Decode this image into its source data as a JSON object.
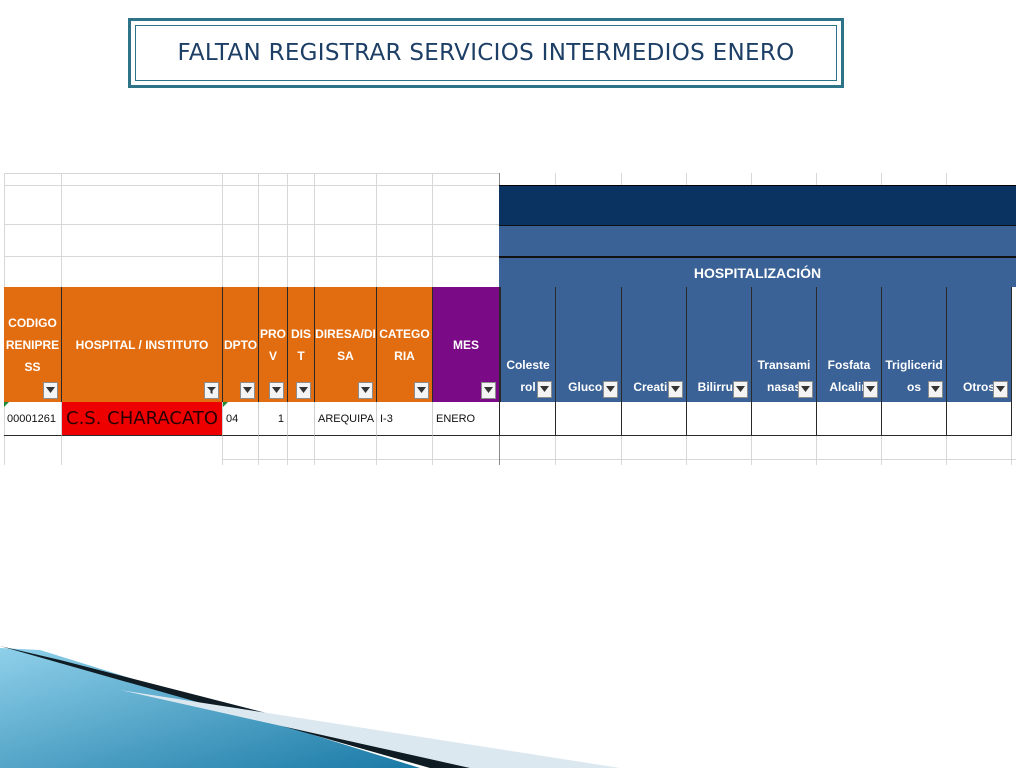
{
  "title": "FALTAN REGISTRAR SERVICIOS INTERMEDIOS ENERO",
  "banner_label": "HOSPITALIZACIÓN",
  "colors": {
    "orange": "#e26d10",
    "purple": "#7a0a86",
    "blue_header": "#3a6296",
    "dark_banner": "#0b3362",
    "highlight_red": "#ee0000",
    "title_border": "#2e7489"
  },
  "columns_left": [
    {
      "key": "codigo",
      "label": "CODIGO\nRENIPRE\nSS"
    },
    {
      "key": "hospital",
      "label": "HOSPITAL / INSTITUTO"
    },
    {
      "key": "dpto",
      "label": "DPTO"
    },
    {
      "key": "prov",
      "label": "PRO\nV"
    },
    {
      "key": "dist",
      "label": "DIS\nT"
    },
    {
      "key": "diresa",
      "label": "DIRESA/DI\nSA"
    },
    {
      "key": "categoria",
      "label": "CATEGO\nRIA"
    },
    {
      "key": "mes",
      "label": "MES"
    }
  ],
  "columns_hosp": [
    {
      "key": "colesterol",
      "label": "Coleste\nrol"
    },
    {
      "key": "glucosa",
      "label": "Glucos"
    },
    {
      "key": "creatinina",
      "label": "Creatin"
    },
    {
      "key": "bilirrubina",
      "label": "Bilirrub"
    },
    {
      "key": "transaminasas",
      "label": "Transami\nnasas"
    },
    {
      "key": "fosfatasa",
      "label": "Fosfata\nAlcalin"
    },
    {
      "key": "trigliceridos",
      "label": "Triglicerid\nos"
    },
    {
      "key": "otros",
      "label": "Otros"
    }
  ],
  "row": {
    "codigo": "00001261",
    "hospital": "C.S. CHARACATO",
    "dpto": "04",
    "prov": "1",
    "dist": "",
    "diresa": "AREQUIPA",
    "categoria": "I-3",
    "mes": "ENERO"
  },
  "icons": {
    "filter": "filter-dropdown-icon",
    "filter_active": "filter-active-icon"
  }
}
